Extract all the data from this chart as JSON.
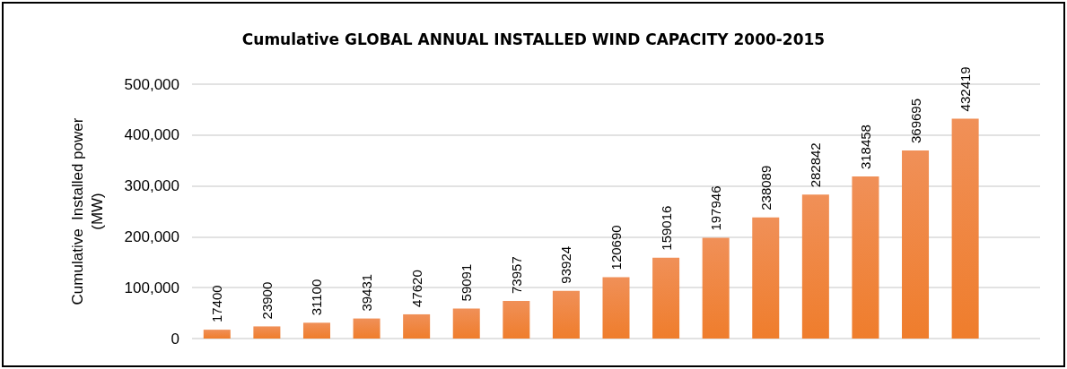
{
  "chart_data": {
    "type": "bar",
    "title": "Cumulative GLOBAL ANNUAL INSTALLED WIND CAPACITY 2000-2015",
    "ylabel": "Cumulative  Installed power\n(MW)",
    "categories": [
      null,
      null,
      null,
      null,
      null,
      null,
      null,
      null,
      null,
      null,
      null,
      null,
      null,
      null,
      null,
      null,
      null
    ],
    "values": [
      17400,
      23900,
      31100,
      39431,
      47620,
      59091,
      73957,
      93924,
      120690,
      159016,
      197946,
      238089,
      282842,
      318458,
      369695,
      432419,
      null
    ],
    "color": "#ef7d2c",
    "ylim": [
      0,
      500000
    ],
    "yticks": [
      {
        "value": 0,
        "label": "0"
      },
      {
        "value": 100000,
        "label": "100,000"
      },
      {
        "value": 200000,
        "label": "200,000"
      },
      {
        "value": 300000,
        "label": "300,000"
      },
      {
        "value": 400000,
        "label": "400,000"
      },
      {
        "value": 500000,
        "label": "500,000"
      }
    ],
    "grid": true,
    "data_labels": true
  }
}
